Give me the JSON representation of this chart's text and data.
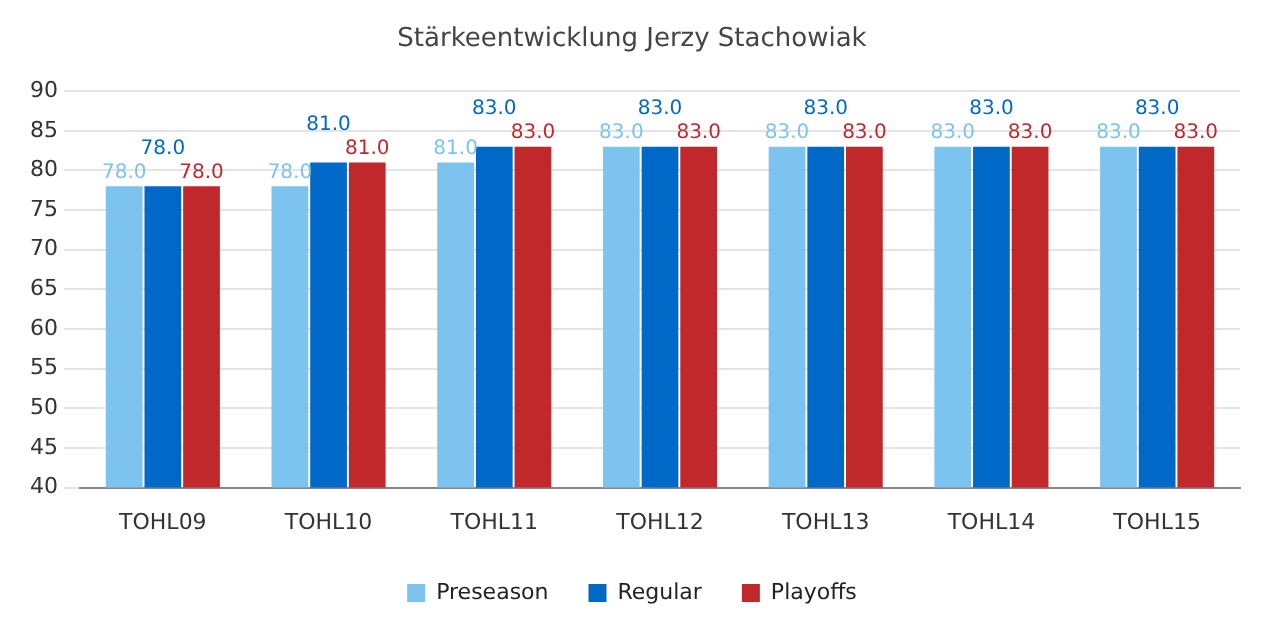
{
  "chart_data": {
    "type": "bar",
    "title": "Stärkeentwicklung Jerzy Stachowiak",
    "categories": [
      "TOHL09",
      "TOHL10",
      "TOHL11",
      "TOHL12",
      "TOHL13",
      "TOHL14",
      "TOHL15"
    ],
    "series": [
      {
        "name": "Preseason",
        "color": "#7cc3ef",
        "values": [
          78,
          78,
          81,
          83,
          83,
          83,
          83
        ],
        "value_labels": [
          "78.0",
          "78.0",
          "81.0",
          "83.0",
          "83.0",
          "83.0",
          "83.0"
        ]
      },
      {
        "name": "Regular",
        "color": "#0068c6",
        "values": [
          78,
          81,
          83,
          83,
          83,
          83,
          83
        ],
        "value_labels": [
          "78.0",
          "81.0",
          "83.0",
          "83.0",
          "83.0",
          "83.0",
          "83.0"
        ]
      },
      {
        "name": "Playoffs",
        "color": "#c0282b",
        "values": [
          78,
          81,
          83,
          83,
          83,
          83,
          83
        ],
        "value_labels": [
          "78.0",
          "81.0",
          "83.0",
          "83.0",
          "83.0",
          "83.0",
          "83.0"
        ]
      }
    ],
    "ylim": [
      40,
      90
    ],
    "yticks": [
      40,
      45,
      50,
      55,
      60,
      65,
      70,
      75,
      80,
      85,
      90
    ],
    "grid": "y",
    "legend": "bottom"
  }
}
